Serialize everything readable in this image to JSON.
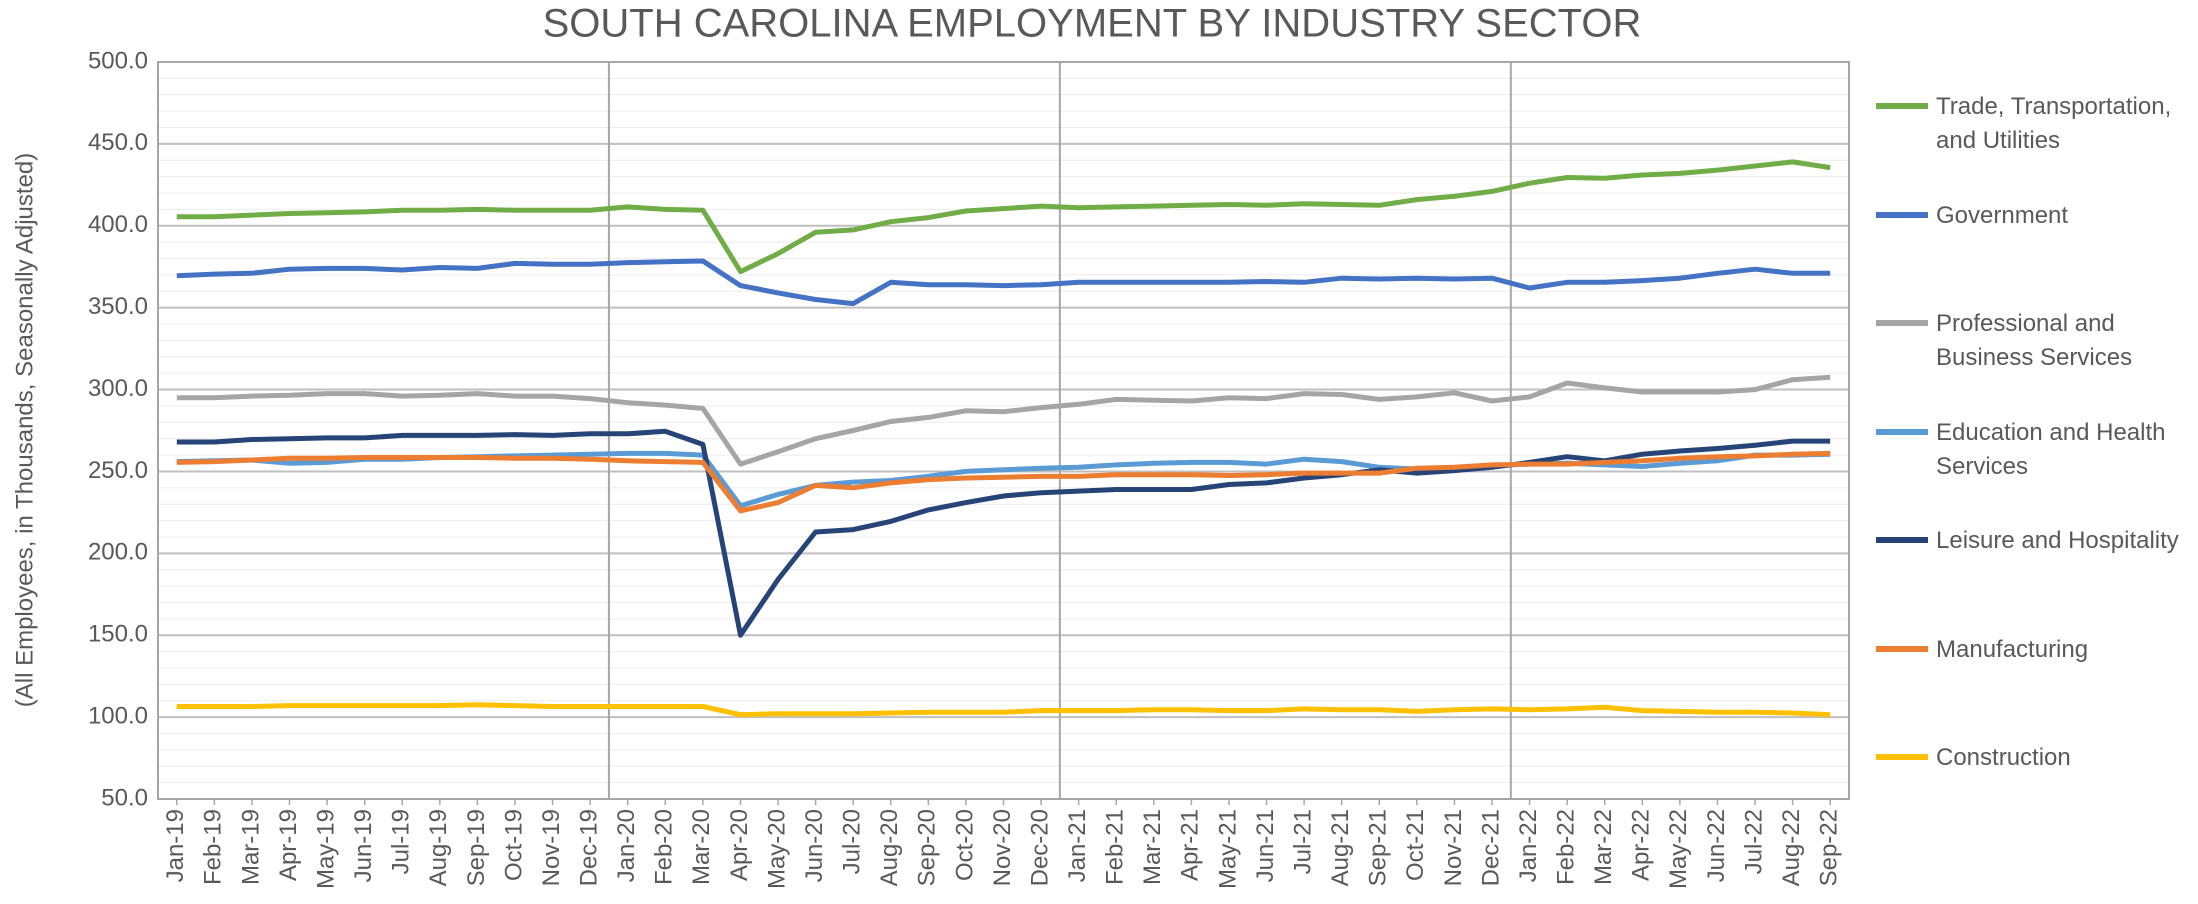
{
  "chart_data": {
    "type": "line",
    "title": "SOUTH CAROLINA EMPLOYMENT BY INDUSTRY SECTOR",
    "y_label": "(All Employees, in Thousands, Seasonally Adjusted)",
    "categories": [
      "Jan-19",
      "Feb-19",
      "Mar-19",
      "Apr-19",
      "May-19",
      "Jun-19",
      "Jul-19",
      "Aug-19",
      "Sep-19",
      "Oct-19",
      "Nov-19",
      "Dec-19",
      "Jan-20",
      "Feb-20",
      "Mar-20",
      "Apr-20",
      "May-20",
      "Jun-20",
      "Jul-20",
      "Aug-20",
      "Sep-20",
      "Oct-20",
      "Nov-20",
      "Dec-20",
      "Jan-21",
      "Feb-21",
      "Mar-21",
      "Apr-21",
      "May-21",
      "Jun-21",
      "Jul-21",
      "Aug-21",
      "Sep-21",
      "Oct-21",
      "Nov-21",
      "Dec-21",
      "Jan-22",
      "Feb-22",
      "Mar-22",
      "Apr-22",
      "May-22",
      "Jun-22",
      "Jul-22",
      "Aug-22",
      "Sep-22"
    ],
    "series": [
      {
        "name": "Trade, Transportation, and Utilities",
        "color": "#70ad47",
        "values": [
          405.5,
          405.5,
          406.5,
          407.5,
          408,
          408.5,
          409.5,
          409.5,
          410,
          409.5,
          409.5,
          409.5,
          411.5,
          410,
          409.5,
          372,
          383,
          396,
          397.5,
          402.5,
          405,
          409,
          410.5,
          412,
          411,
          411.5,
          412,
          412.5,
          413,
          412.5,
          413.5,
          413,
          412.5,
          416,
          418,
          421,
          426,
          429.5,
          429,
          431,
          432,
          434,
          436.5,
          439,
          435.5
        ]
      },
      {
        "name": "Government",
        "color": "#4472c4",
        "values": [
          369.5,
          370.5,
          371,
          373.5,
          374,
          374,
          373,
          374.5,
          374,
          377,
          376.5,
          376.5,
          377.5,
          378,
          378.5,
          363.5,
          359,
          355,
          352.5,
          365.5,
          364,
          364,
          363.5,
          364,
          365.5,
          365.5,
          365.5,
          365.5,
          365.5,
          366,
          365.5,
          368,
          367.5,
          368,
          367.5,
          368,
          362,
          365.5,
          365.5,
          366.5,
          368,
          371,
          373.5,
          371,
          371
        ]
      },
      {
        "name": "Professional and Business Services",
        "color": "#a5a5a5",
        "values": [
          295,
          295,
          296,
          296.5,
          297.5,
          297.5,
          296,
          296.5,
          297.5,
          296,
          296,
          294.5,
          292,
          290.5,
          288.5,
          254.5,
          262,
          270,
          275,
          280.5,
          283,
          287,
          286.5,
          289,
          291,
          294,
          293.5,
          293,
          295,
          294.5,
          297.5,
          297,
          294,
          295.5,
          298,
          293,
          295.5,
          304,
          301,
          298.5,
          298.5,
          298.5,
          300,
          306,
          307.5
        ]
      },
      {
        "name": "Education and Health Services",
        "color": "#5b9bd5",
        "values": [
          256,
          256.5,
          257,
          255,
          255.5,
          257.5,
          257.5,
          258.5,
          259,
          259.5,
          260,
          260.5,
          261,
          261,
          260,
          229,
          236,
          241.5,
          243.5,
          244.5,
          247,
          250,
          251,
          252,
          252.5,
          254,
          255,
          255.5,
          255.5,
          254.5,
          257.5,
          256,
          252.5,
          251.5,
          252,
          253.5,
          254.5,
          255,
          254,
          253,
          255,
          256.5,
          260,
          260,
          260.5
        ]
      },
      {
        "name": "Leisure and Hospitality",
        "color": "#264478",
        "values": [
          268,
          268,
          269.5,
          270,
          270.5,
          270.5,
          272,
          272,
          272,
          272.5,
          272,
          273,
          273,
          274.5,
          266.5,
          150,
          184,
          213,
          214.5,
          219.5,
          226.5,
          231,
          235,
          237,
          238,
          239,
          239,
          239,
          242,
          243,
          246,
          248,
          251,
          249,
          250.5,
          252.5,
          255.5,
          259,
          256.5,
          260.5,
          262.5,
          264,
          266,
          268.5,
          268.5
        ]
      },
      {
        "name": "Manufacturing",
        "color": "#ed7d31",
        "values": [
          255.5,
          256,
          257,
          258,
          258,
          258.5,
          258.5,
          258.5,
          258.5,
          258,
          258,
          257.5,
          256.5,
          256,
          255.5,
          226,
          231,
          241.5,
          240,
          243,
          245,
          246,
          246.5,
          247,
          247,
          248,
          248,
          248,
          247.5,
          248,
          249,
          249,
          249,
          252,
          252.5,
          254,
          254.5,
          254.5,
          255.5,
          256.5,
          258,
          259,
          259.5,
          260.5,
          261
        ]
      },
      {
        "name": "Construction",
        "color": "#ffc000",
        "values": [
          106.5,
          106.5,
          106.5,
          107,
          107,
          107,
          107,
          107,
          107.5,
          107,
          106.5,
          106.5,
          106.5,
          106.5,
          106.5,
          101.5,
          102,
          102,
          102,
          102.5,
          103,
          103,
          103,
          104,
          104,
          104,
          104.5,
          104.5,
          104,
          104,
          105,
          104.5,
          104.5,
          103.5,
          104.5,
          105,
          104.5,
          105,
          106,
          104,
          103.5,
          103,
          103,
          102.5,
          101.5
        ]
      }
    ],
    "ylim": [
      50,
      500
    ],
    "yticks": [
      {
        "value": 50,
        "label": "50.0"
      },
      {
        "value": 100,
        "label": "100.0"
      },
      {
        "value": 150,
        "label": "150.0"
      },
      {
        "value": 200,
        "label": "200.0"
      },
      {
        "value": 250,
        "label": "250.0"
      },
      {
        "value": 300,
        "label": "300.0"
      },
      {
        "value": 350,
        "label": "350.0"
      },
      {
        "value": 400,
        "label": "400.0"
      },
      {
        "value": 450,
        "label": "450.0"
      },
      {
        "value": 500,
        "label": "500.0"
      }
    ],
    "grid": true,
    "legend": "right"
  }
}
